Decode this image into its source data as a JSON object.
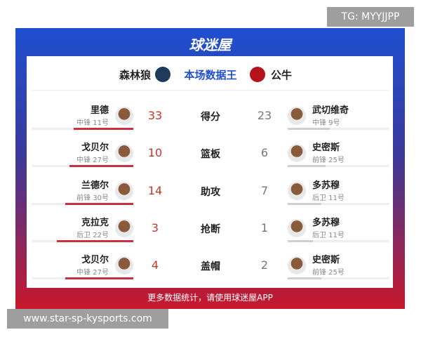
{
  "watermark_top": "TG: MYYJJPP",
  "brand": "球迷屋",
  "header": {
    "home_team": "森林狼",
    "title": "本场数据王",
    "away_team": "公牛"
  },
  "rows": [
    {
      "stat": "得分",
      "left": {
        "name": "里德",
        "position": "中锋 11号",
        "value": 33
      },
      "right": {
        "name": "武切维奇",
        "position": "中锋 9号",
        "value": 23
      }
    },
    {
      "stat": "篮板",
      "left": {
        "name": "戈贝尔",
        "position": "中锋 27号",
        "value": 10
      },
      "right": {
        "name": "史密斯",
        "position": "前锋 25号",
        "value": 6
      }
    },
    {
      "stat": "助攻",
      "left": {
        "name": "兰德尔",
        "position": "前锋 30号",
        "value": 14
      },
      "right": {
        "name": "多苏穆",
        "position": "后卫 11号",
        "value": 7
      }
    },
    {
      "stat": "抢断",
      "left": {
        "name": "克拉克",
        "position": "后卫 22号",
        "value": 3
      },
      "right": {
        "name": "多苏穆",
        "position": "后卫 11号",
        "value": 1
      }
    },
    {
      "stat": "盖帽",
      "left": {
        "name": "戈贝尔",
        "position": "中锋 27号",
        "value": 4
      },
      "right": {
        "name": "史密斯",
        "position": "前锋 25号",
        "value": 2
      }
    }
  ],
  "footer": "更多数据统计，请使用球迷屋APP",
  "watermark_bottom": "www.star-sp-kysports.com"
}
